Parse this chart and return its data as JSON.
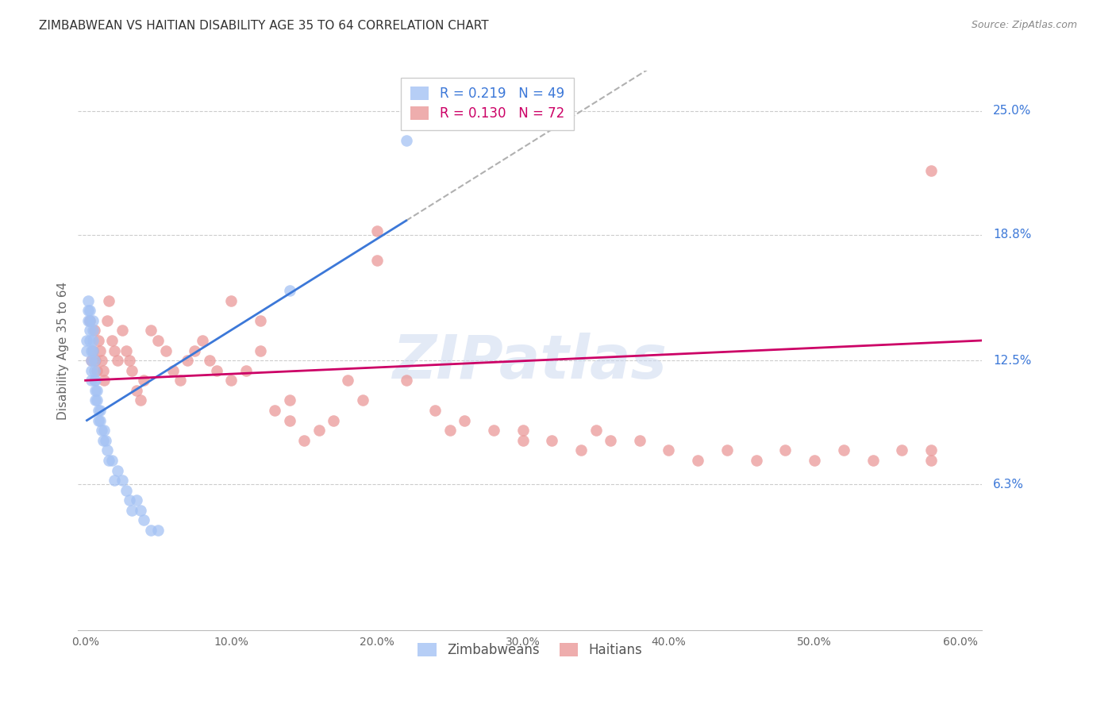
{
  "title": "ZIMBABWEAN VS HAITIAN DISABILITY AGE 35 TO 64 CORRELATION CHART",
  "source": "Source: ZipAtlas.com",
  "ylabel": "Disability Age 35 to 64",
  "xlabel_ticks": [
    "0.0%",
    "10.0%",
    "20.0%",
    "30.0%",
    "40.0%",
    "50.0%",
    "60.0%"
  ],
  "xlabel_vals": [
    0.0,
    0.1,
    0.2,
    0.3,
    0.4,
    0.5,
    0.6
  ],
  "ylabel_ticks": [
    "6.3%",
    "12.5%",
    "18.8%",
    "25.0%"
  ],
  "ylabel_vals": [
    0.063,
    0.125,
    0.188,
    0.25
  ],
  "xlim": [
    -0.005,
    0.615
  ],
  "ylim": [
    -0.01,
    0.27
  ],
  "R_zim": 0.219,
  "N_zim": 49,
  "R_hai": 0.13,
  "N_hai": 72,
  "zim_color": "#a4c2f4",
  "hai_color": "#ea9999",
  "zim_line_color": "#3c78d8",
  "hai_line_color": "#cc0066",
  "zim_dash_color": "#b0b0b0",
  "watermark": "ZIPatlas",
  "legend_label_zim": "Zimbabweans",
  "legend_label_hai": "Haitians",
  "zim_x": [
    0.001,
    0.001,
    0.002,
    0.002,
    0.002,
    0.003,
    0.003,
    0.003,
    0.003,
    0.004,
    0.004,
    0.004,
    0.004,
    0.005,
    0.005,
    0.005,
    0.005,
    0.006,
    0.006,
    0.006,
    0.007,
    0.007,
    0.007,
    0.008,
    0.008,
    0.009,
    0.009,
    0.01,
    0.01,
    0.011,
    0.012,
    0.013,
    0.014,
    0.015,
    0.016,
    0.018,
    0.02,
    0.022,
    0.025,
    0.028,
    0.03,
    0.032,
    0.035,
    0.038,
    0.04,
    0.045,
    0.05,
    0.14,
    0.22
  ],
  "zim_y": [
    0.135,
    0.13,
    0.155,
    0.15,
    0.145,
    0.15,
    0.145,
    0.14,
    0.135,
    0.13,
    0.125,
    0.12,
    0.115,
    0.145,
    0.14,
    0.135,
    0.13,
    0.125,
    0.12,
    0.115,
    0.115,
    0.11,
    0.105,
    0.11,
    0.105,
    0.1,
    0.095,
    0.1,
    0.095,
    0.09,
    0.085,
    0.09,
    0.085,
    0.08,
    0.075,
    0.075,
    0.065,
    0.07,
    0.065,
    0.06,
    0.055,
    0.05,
    0.055,
    0.05,
    0.045,
    0.04,
    0.04,
    0.16,
    0.235
  ],
  "hai_x": [
    0.003,
    0.004,
    0.005,
    0.006,
    0.007,
    0.008,
    0.009,
    0.01,
    0.011,
    0.012,
    0.013,
    0.015,
    0.016,
    0.018,
    0.02,
    0.022,
    0.025,
    0.028,
    0.03,
    0.032,
    0.035,
    0.038,
    0.04,
    0.045,
    0.05,
    0.055,
    0.06,
    0.065,
    0.07,
    0.075,
    0.08,
    0.085,
    0.09,
    0.1,
    0.11,
    0.12,
    0.13,
    0.14,
    0.15,
    0.16,
    0.17,
    0.18,
    0.19,
    0.2,
    0.22,
    0.24,
    0.26,
    0.28,
    0.3,
    0.32,
    0.34,
    0.36,
    0.38,
    0.4,
    0.42,
    0.44,
    0.46,
    0.48,
    0.5,
    0.52,
    0.54,
    0.56,
    0.58,
    0.58,
    0.1,
    0.12,
    0.14,
    0.2,
    0.25,
    0.3,
    0.35,
    0.58
  ],
  "hai_y": [
    0.145,
    0.125,
    0.13,
    0.14,
    0.125,
    0.12,
    0.135,
    0.13,
    0.125,
    0.12,
    0.115,
    0.145,
    0.155,
    0.135,
    0.13,
    0.125,
    0.14,
    0.13,
    0.125,
    0.12,
    0.11,
    0.105,
    0.115,
    0.14,
    0.135,
    0.13,
    0.12,
    0.115,
    0.125,
    0.13,
    0.135,
    0.125,
    0.12,
    0.115,
    0.12,
    0.13,
    0.1,
    0.095,
    0.085,
    0.09,
    0.095,
    0.115,
    0.105,
    0.19,
    0.115,
    0.1,
    0.095,
    0.09,
    0.09,
    0.085,
    0.08,
    0.085,
    0.085,
    0.08,
    0.075,
    0.08,
    0.075,
    0.08,
    0.075,
    0.08,
    0.075,
    0.08,
    0.075,
    0.08,
    0.155,
    0.145,
    0.105,
    0.175,
    0.09,
    0.085,
    0.09,
    0.22
  ],
  "zim_trend_x": [
    0.001,
    0.22
  ],
  "zim_trend_y": [
    0.095,
    0.195
  ],
  "hai_trend_x": [
    0.0,
    0.615
  ],
  "hai_trend_y": [
    0.115,
    0.135
  ]
}
